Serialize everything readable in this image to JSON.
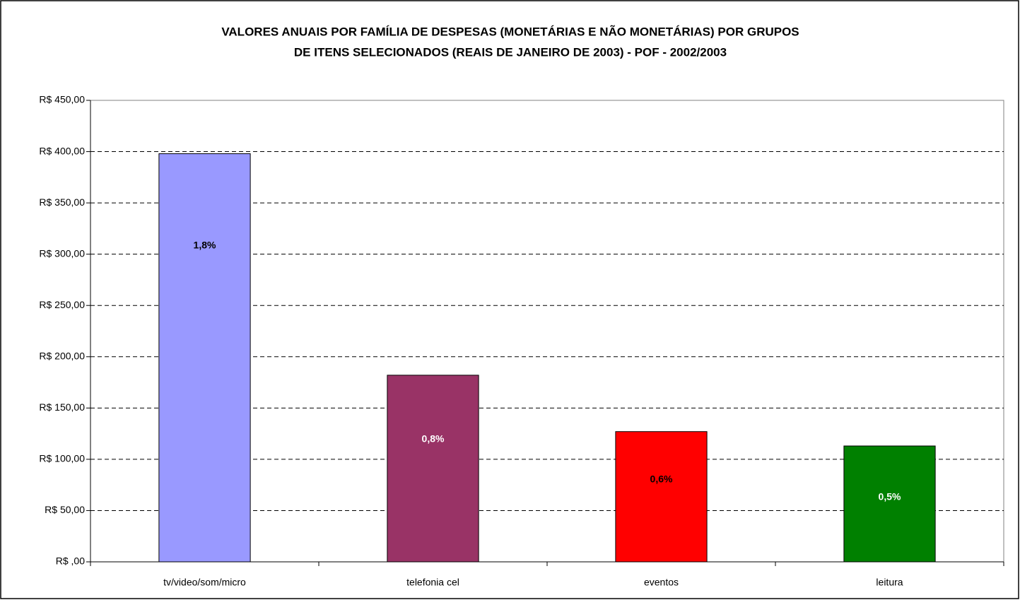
{
  "chart_data": {
    "type": "bar",
    "title": [
      "VALORES ANUAIS POR FAMÍLIA DE DESPESAS (MONETÁRIAS E NÃO MONETÁRIAS) POR GRUPOS",
      "DE ITENS SELECIONADOS (REAIS DE JANEIRO DE 2003) - POF - 2002/2003"
    ],
    "categories": [
      "tv/video/som/micro",
      "telefonia cel",
      "eventos",
      "leitura"
    ],
    "values": [
      398,
      182,
      127,
      113
    ],
    "colors": [
      "#9999ff",
      "#993366",
      "#ff0000",
      "#008000"
    ],
    "annotations": [
      "1,8%",
      "0,8%",
      "0,6%",
      "0,5%"
    ],
    "annotation_colors": [
      "#000000",
      "#ffffff",
      "#000000",
      "#ffffff"
    ],
    "ylim": [
      0,
      450
    ],
    "yticks": [
      {
        "value": 0,
        "label": "R$ ,00"
      },
      {
        "value": 50,
        "label": "R$ 50,00"
      },
      {
        "value": 100,
        "label": "R$ 100,00"
      },
      {
        "value": 150,
        "label": "R$ 150,00"
      },
      {
        "value": 200,
        "label": "R$ 200,00"
      },
      {
        "value": 250,
        "label": "R$ 250,00"
      },
      {
        "value": 300,
        "label": "R$ 300,00"
      },
      {
        "value": 350,
        "label": "R$ 350,00"
      },
      {
        "value": 400,
        "label": "R$ 400,00"
      },
      {
        "value": 450,
        "label": "R$ 450,00"
      }
    ],
    "grid": true
  }
}
